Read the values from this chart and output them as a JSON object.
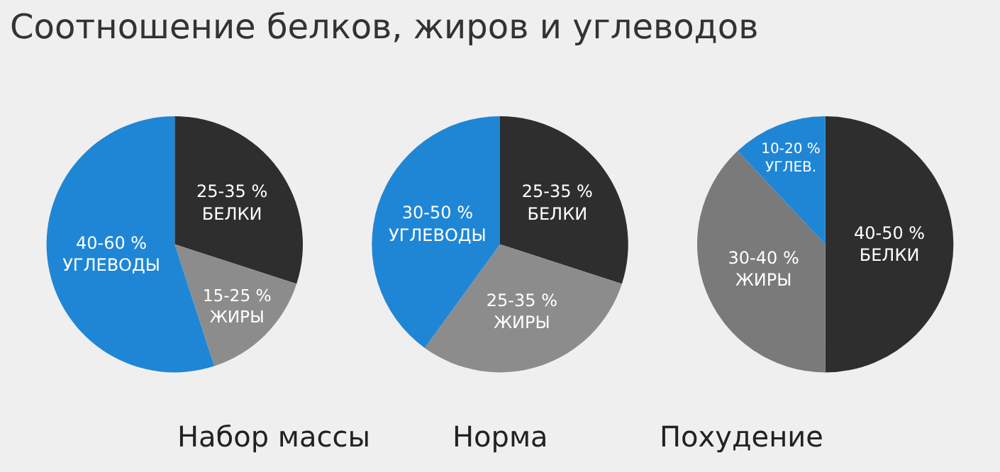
{
  "chart_data": [
    {
      "type": "pie",
      "title": "Соотношение белков, жиров и углеводов",
      "subtitle": "Набор массы",
      "categories": [
        "25-35 %\nБЕЛКИ",
        "15-25 %\nЖИРЫ",
        "40-60 %\nУГЛЕВОДЫ"
      ],
      "values": [
        30,
        15,
        55
      ],
      "colors": [
        "#2e2e2e",
        "#8c8c8c",
        "#1f86d6"
      ],
      "legend": false
    },
    {
      "type": "pie",
      "subtitle": "Норма",
      "categories": [
        "25-35 %\nБЕЛКИ",
        "25-35 %\nЖИРЫ",
        "30-50 %\nУГЛЕВОДЫ"
      ],
      "values": [
        30,
        30,
        40
      ],
      "colors": [
        "#2e2e2e",
        "#8c8c8c",
        "#1f86d6"
      ],
      "legend": false
    },
    {
      "type": "pie",
      "subtitle": "Похудение",
      "categories": [
        "40-50 %\nБЕЛКИ",
        "30-40 %\nЖИРЫ",
        "10-20 %\nУГЛЕВ."
      ],
      "values": [
        50,
        38,
        12
      ],
      "colors": [
        "#2e2e2e",
        "#7a7a7a",
        "#1f86d6"
      ],
      "legend": false
    }
  ]
}
